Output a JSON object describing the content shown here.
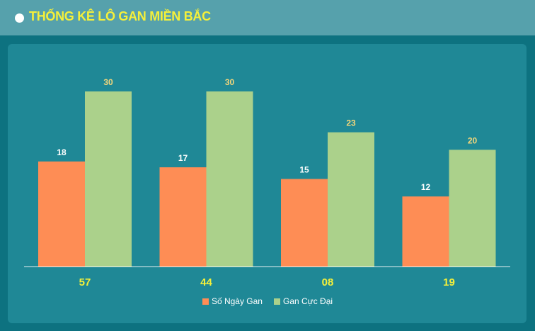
{
  "header": {
    "title": "THỐNG KÊ LÔ GAN MIỀN BẮC"
  },
  "chart_data": {
    "type": "bar",
    "categories": [
      "57",
      "44",
      "08",
      "19"
    ],
    "series": [
      {
        "name": "Số Ngày Gan",
        "values": [
          18,
          17,
          15,
          12
        ],
        "color": "#fe8d55"
      },
      {
        "name": "Gan Cực Đại",
        "values": [
          30,
          30,
          23,
          20
        ],
        "color": "#abd18b"
      }
    ],
    "title": "THỐNG KÊ LÔ GAN MIỀN BẮC",
    "xlabel": "",
    "ylabel": "",
    "ylim": [
      0,
      30
    ],
    "grid": false,
    "legend": "bottom-center",
    "colors": {
      "category_label": "#f5f03a",
      "series1_label": "#ffffff",
      "series2_label": "#f5d77a",
      "axis": "#e8f1f2"
    }
  }
}
